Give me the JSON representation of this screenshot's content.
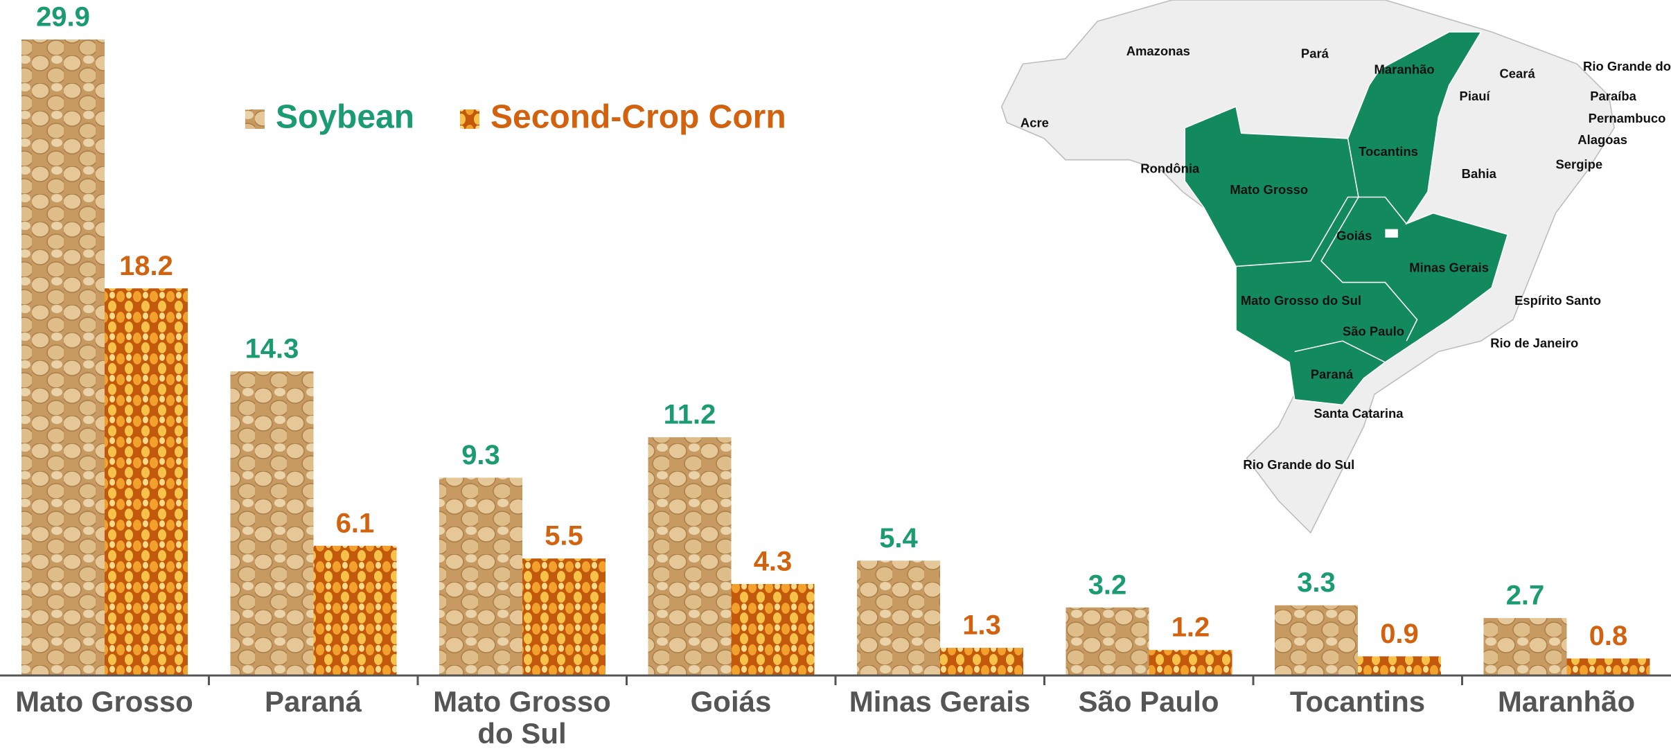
{
  "chart_data": {
    "type": "bar",
    "categories": [
      "Mato Grosso",
      "Paraná",
      "Mato Grosso do Sul",
      "Goiás",
      "Minas Gerais",
      "São Paulo",
      "Tocantins",
      "Maranhão"
    ],
    "series": [
      {
        "name": "Soybean",
        "color": "#1a9b72",
        "values": [
          29.9,
          14.3,
          9.3,
          11.2,
          5.4,
          3.2,
          3.3,
          2.7
        ]
      },
      {
        "name": "Second-Crop Corn",
        "color": "#d3620e",
        "values": [
          18.2,
          6.1,
          5.5,
          4.3,
          1.3,
          1.2,
          0.9,
          0.8
        ]
      }
    ]
  },
  "map": {
    "labels": [
      "Amazonas",
      "Pará",
      "Maranhão",
      "Ceará",
      "Rio Grande do",
      "Paraíba",
      "Pernambuco",
      "Alagoas",
      "Sergipe",
      "Piauí",
      "Acre",
      "Rondônia",
      "Tocantins",
      "Bahia",
      "Mato Grosso",
      "Goiás",
      "Minas Gerais",
      "Mato Grosso do Sul",
      "Espírito Santo",
      "São Paulo",
      "Rio de Janeiro",
      "Paraná",
      "Santa Catarina",
      "Rio Grande do Sul"
    ]
  }
}
